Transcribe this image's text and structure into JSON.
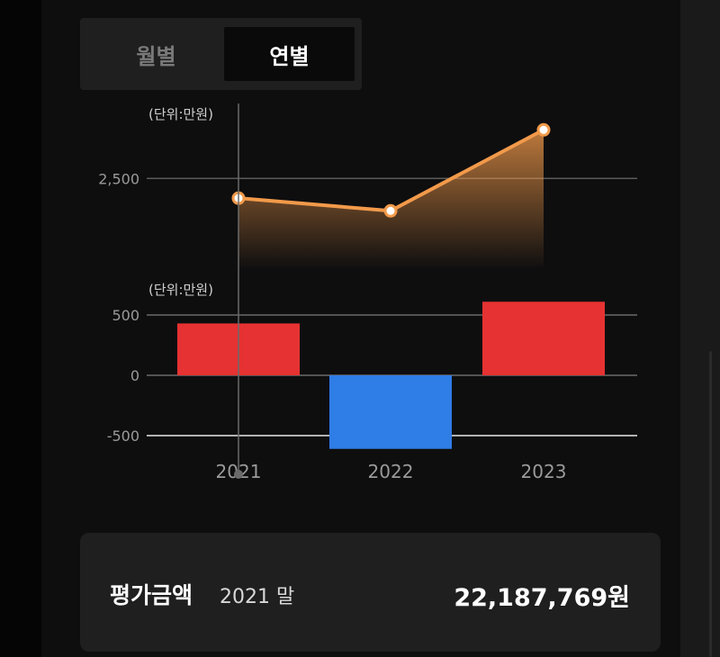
{
  "period_toggle": {
    "monthly_label": "월별",
    "yearly_label": "연별",
    "selected": "yearly"
  },
  "chart_data": [
    {
      "type": "line",
      "unit_label": "(단위:만원)",
      "x": [
        "2021",
        "2022",
        "2023"
      ],
      "values": [
        2220,
        2040,
        3190
      ],
      "yticks": [
        2500
      ],
      "ytick_labels": [
        "2,500"
      ],
      "ylim": [
        1200,
        3500
      ],
      "grid": true,
      "color": "#f29a4a"
    },
    {
      "type": "bar",
      "unit_label": "(단위:만원)",
      "categories": [
        "2021",
        "2022",
        "2023"
      ],
      "values": [
        430,
        -610,
        610
      ],
      "bar_colors": [
        "#e63232",
        "#2f7de6",
        "#e63232"
      ],
      "yticks": [
        500,
        0,
        -500
      ],
      "ytick_labels": [
        "500",
        "0",
        "-500"
      ],
      "ylim": [
        -680,
        680
      ],
      "grid": true
    }
  ],
  "summary": {
    "label": "평가금액",
    "date_label": "2021 말",
    "value": "22,187,769원"
  }
}
